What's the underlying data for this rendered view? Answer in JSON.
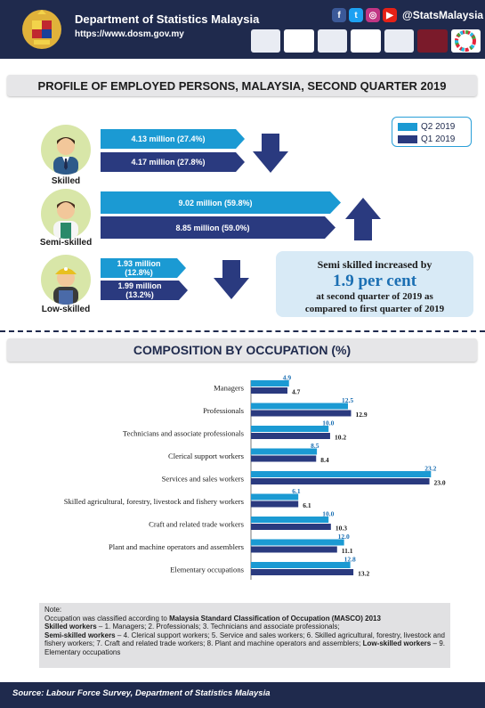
{
  "header": {
    "title": "Department of Statistics Malaysia",
    "url": "https://www.dosm.gov.my",
    "social_handle": "@StatsMalaysia",
    "social_icons": [
      "facebook-icon",
      "twitter-icon",
      "instagram-icon",
      "youtube-icon"
    ],
    "logos": [
      "",
      "",
      "",
      "",
      "",
      "",
      ""
    ]
  },
  "profile": {
    "title": "PROFILE OF EMPLOYED PERSONS, MALAYSIA, SECOND QUARTER 2019",
    "legend": {
      "q2": "Q2 2019",
      "q1": "Q1 2019"
    },
    "colors": {
      "q2": "#1b9ad3",
      "q1": "#2a3a7f",
      "header": "#1f2a4d"
    },
    "groups": [
      {
        "label": "Skilled",
        "q2_text": "4.13 million (27.4%)",
        "q1_text": "4.17 million (27.8%)",
        "q2_share": 27.4,
        "q1_share": 27.8,
        "trend": "down"
      },
      {
        "label": "Semi-skilled",
        "q2_text": "9.02 million (59.8%)",
        "q1_text": "8.85 million (59.0%)",
        "q2_share": 59.8,
        "q1_share": 59.0,
        "trend": "up"
      },
      {
        "label": "Low-skilled",
        "q2_text": "1.93 million (12.8%)",
        "q1_text": "1.99 million (13.2%)",
        "q2_share": 12.8,
        "q1_share": 13.2,
        "trend": "down"
      }
    ],
    "info": {
      "line1": "Semi skilled increased by",
      "highlight": "1.9 per cent",
      "line3": "at second quarter of 2019 as",
      "line4": "compared to first quarter of 2019"
    }
  },
  "composition": {
    "title": "COMPOSITION BY OCCUPATION (%)"
  },
  "chart_data": {
    "type": "bar",
    "orientation": "horizontal",
    "categories": [
      "Managers",
      "Professionals",
      "Technicians and associate professionals",
      "Clerical support workers",
      "Services and sales workers",
      "Skilled agricultural, forestry, livestock and fishery workers",
      "Craft and related trade workers",
      "Plant and machine operators and assemblers",
      "Elementary occupations"
    ],
    "series": [
      {
        "name": "Q2 2019",
        "color": "#1b9ad3",
        "values": [
          4.9,
          12.5,
          10.0,
          8.5,
          23.2,
          6.1,
          10.0,
          12.0,
          12.8
        ]
      },
      {
        "name": "Q1 2019",
        "color": "#2a3a7f",
        "values": [
          4.7,
          12.9,
          10.2,
          8.4,
          23.0,
          6.1,
          10.3,
          11.1,
          13.2
        ]
      }
    ],
    "value_labels": {
      "Q2 2019": [
        "4.9",
        "12.5",
        "10.0",
        "8.5",
        "23.2",
        "6.1",
        "10.0",
        "12.0",
        "12.8"
      ],
      "Q1 2019": [
        "4.7",
        "12.9",
        "10.2",
        "8.4",
        "23.0",
        "6.1",
        "10.3",
        "11.1",
        "13.2"
      ]
    },
    "title": "COMPOSITION BY OCCUPATION (%)",
    "xlabel": "",
    "ylabel": "",
    "xlim": [
      0,
      25
    ],
    "grid": false,
    "legend": "none"
  },
  "note": {
    "heading": "Note:",
    "intro": "Occupation was classified according to",
    "masco": "Malaysia Standard Classification of Occupation (MASCO) 2013",
    "skilled_label": "Skilled workers",
    "skilled_text": " – 1. Managers; 2. Professionals; 3. Technicians and associate professionals;",
    "semi_label": "Semi-skilled workers",
    "semi_text": " – 4. Clerical support workers; 5. Service and sales workers; 6. Skilled agricultural, forestry, livestock and fishery workers; 7. Craft and related trade workers; 8. Plant and machine operators and assemblers;",
    "low_label": "Low-skilled workers",
    "low_text": " – 9. Elementary occupations"
  },
  "footer": {
    "source": "Source: Labour Force Survey, Department of Statistics Malaysia"
  }
}
